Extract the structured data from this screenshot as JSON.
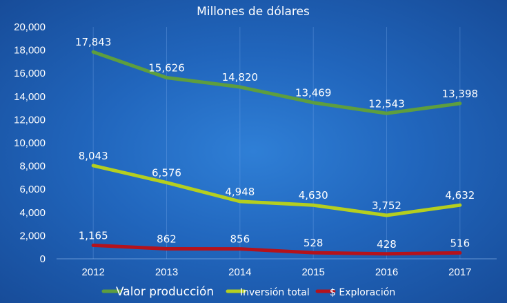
{
  "chart_data": {
    "type": "line",
    "title": "Millones de dólares",
    "categories": [
      "2012",
      "2013",
      "2014",
      "2015",
      "2016",
      "2017"
    ],
    "ylim": [
      0,
      20000
    ],
    "yticks": [
      "0",
      "2,000",
      "4,000",
      "6,000",
      "8,000",
      "10,000",
      "12,000",
      "14,000",
      "16,000",
      "18,000",
      "20,000"
    ],
    "ytick_values": [
      0,
      2000,
      4000,
      6000,
      8000,
      10000,
      12000,
      14000,
      16000,
      18000,
      20000
    ],
    "grid": "vertical",
    "legend_position": "bottom",
    "series": [
      {
        "name": "Valor producción",
        "color": "#5e9e3e",
        "values": [
          17843,
          15626,
          14820,
          13469,
          12543,
          13398
        ],
        "labels": [
          "17,843",
          "15,626",
          "14,820",
          "13,469",
          "12,543",
          "13,398"
        ]
      },
      {
        "name": "Inversión total",
        "color": "#b5cf1f",
        "values": [
          8043,
          6576,
          4948,
          4630,
          3752,
          4632
        ],
        "labels": [
          "8,043",
          "6,576",
          "4,948",
          "4,630",
          "3,752",
          "4,632"
        ]
      },
      {
        "name": "$ Exploración",
        "color": "#b5121b",
        "values": [
          1165,
          862,
          856,
          528,
          428,
          516
        ],
        "labels": [
          "1,165",
          "862",
          "856",
          "528",
          "428",
          "516"
        ]
      }
    ]
  }
}
